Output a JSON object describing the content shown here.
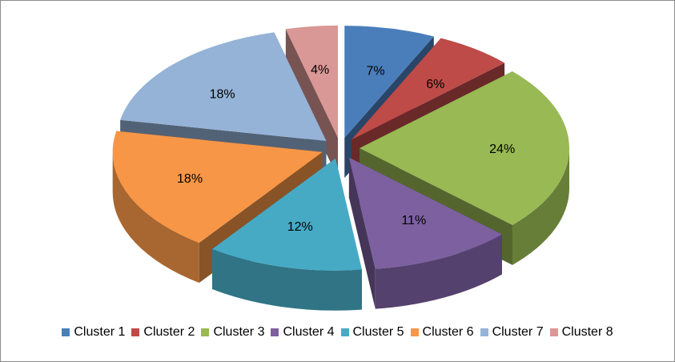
{
  "chart_data": {
    "type": "pie",
    "style": "3d-exploded",
    "legend_position": "bottom",
    "categories": [
      "Cluster 1",
      "Cluster 2",
      "Cluster 3",
      "Cluster 4",
      "Cluster 5",
      "Cluster 6",
      "Cluster 7",
      "Cluster 8"
    ],
    "values": [
      7,
      6,
      24,
      11,
      12,
      18,
      18,
      4
    ],
    "labels": [
      "7%",
      "6%",
      "24%",
      "11%",
      "12%",
      "18%",
      "18%",
      "4%"
    ],
    "colors": [
      "#4a7ebb",
      "#be4b48",
      "#98b954",
      "#7d60a0",
      "#46aac5",
      "#f79646",
      "#95b3d7",
      "#d99795"
    ]
  }
}
